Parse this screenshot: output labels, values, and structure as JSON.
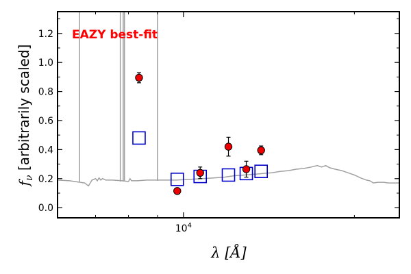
{
  "chart_data": {
    "type": "scatter",
    "title": "",
    "annotation": "EAZY best-fit",
    "annotation_color": "#ff0000",
    "xlabel": "λ [Å]",
    "ylabel": "f_ν [arbitrarily scaled]",
    "x_scale": "log",
    "xlim": [
      6000,
      24000
    ],
    "ylim": [
      -0.07,
      1.35
    ],
    "yticks": [
      0.0,
      0.2,
      0.4,
      0.6,
      0.8,
      1.0,
      1.2
    ],
    "ytick_labels": [
      "0.0",
      "0.2",
      "0.4",
      "0.6",
      "0.8",
      "1.0",
      "1.2"
    ],
    "xtick_labelled": {
      "value": 10000,
      "label": "10^4"
    },
    "xtick_minor": [
      7000,
      8000,
      9000,
      20000
    ],
    "grid": false,
    "series": [
      {
        "kind": "template",
        "color": "#a0a0a0",
        "points": [
          [
            6000,
            0.19
          ],
          [
            6300,
            0.185
          ],
          [
            6700,
            0.17
          ],
          [
            6800,
            0.15
          ],
          [
            6850,
            0.17
          ],
          [
            6900,
            0.19
          ],
          [
            6950,
            0.195
          ],
          [
            7000,
            0.2
          ],
          [
            7050,
            0.185
          ],
          [
            7100,
            0.205
          ],
          [
            7150,
            0.19
          ],
          [
            7200,
            0.2
          ],
          [
            7300,
            0.19
          ],
          [
            7500,
            0.19
          ],
          [
            7800,
            0.185
          ],
          [
            8000,
            0.18
          ],
          [
            8050,
            0.2
          ],
          [
            8100,
            0.185
          ],
          [
            8300,
            0.185
          ],
          [
            8600,
            0.19
          ],
          [
            8900,
            0.19
          ],
          [
            9200,
            0.19
          ],
          [
            9700,
            0.19
          ],
          [
            10300,
            0.195
          ],
          [
            10800,
            0.2
          ],
          [
            11300,
            0.205
          ],
          [
            11800,
            0.21
          ],
          [
            12300,
            0.22
          ],
          [
            12800,
            0.225
          ],
          [
            13300,
            0.23
          ],
          [
            13800,
            0.235
          ],
          [
            14300,
            0.24
          ],
          [
            14800,
            0.25
          ],
          [
            15300,
            0.255
          ],
          [
            15800,
            0.265
          ],
          [
            16300,
            0.27
          ],
          [
            16800,
            0.28
          ],
          [
            17200,
            0.29
          ],
          [
            17500,
            0.28
          ],
          [
            17800,
            0.29
          ],
          [
            18100,
            0.275
          ],
          [
            18500,
            0.265
          ],
          [
            19000,
            0.255
          ],
          [
            19500,
            0.24
          ],
          [
            20000,
            0.225
          ],
          [
            20500,
            0.205
          ],
          [
            21000,
            0.19
          ],
          [
            21300,
            0.185
          ],
          [
            21600,
            0.17
          ],
          [
            22000,
            0.175
          ],
          [
            22500,
            0.175
          ],
          [
            23000,
            0.17
          ],
          [
            24000,
            0.17
          ]
        ],
        "spikes": [
          {
            "x": 6560,
            "base": 0.18
          },
          {
            "x": 7740,
            "base": 0.18
          },
          {
            "x": 7830,
            "base": 0.18
          },
          {
            "x": 7870,
            "base": 0.18
          },
          {
            "x": 9000,
            "base": 0.185
          }
        ]
      },
      {
        "kind": "model",
        "marker": "open-square",
        "color": "#0000cc",
        "x": [
          8350,
          9750,
          10700,
          12000,
          12900,
          13700
        ],
        "y": [
          0.48,
          0.195,
          0.215,
          0.225,
          0.235,
          0.25
        ]
      },
      {
        "kind": "observed",
        "marker": "filled-circle",
        "color": "#ee0000",
        "x": [
          8350,
          9750,
          10700,
          12000,
          12900,
          13700
        ],
        "y": [
          0.895,
          0.115,
          0.24,
          0.42,
          0.265,
          0.395
        ],
        "yerr": [
          0.035,
          0.0,
          0.04,
          0.065,
          0.055,
          0.03
        ]
      }
    ]
  }
}
